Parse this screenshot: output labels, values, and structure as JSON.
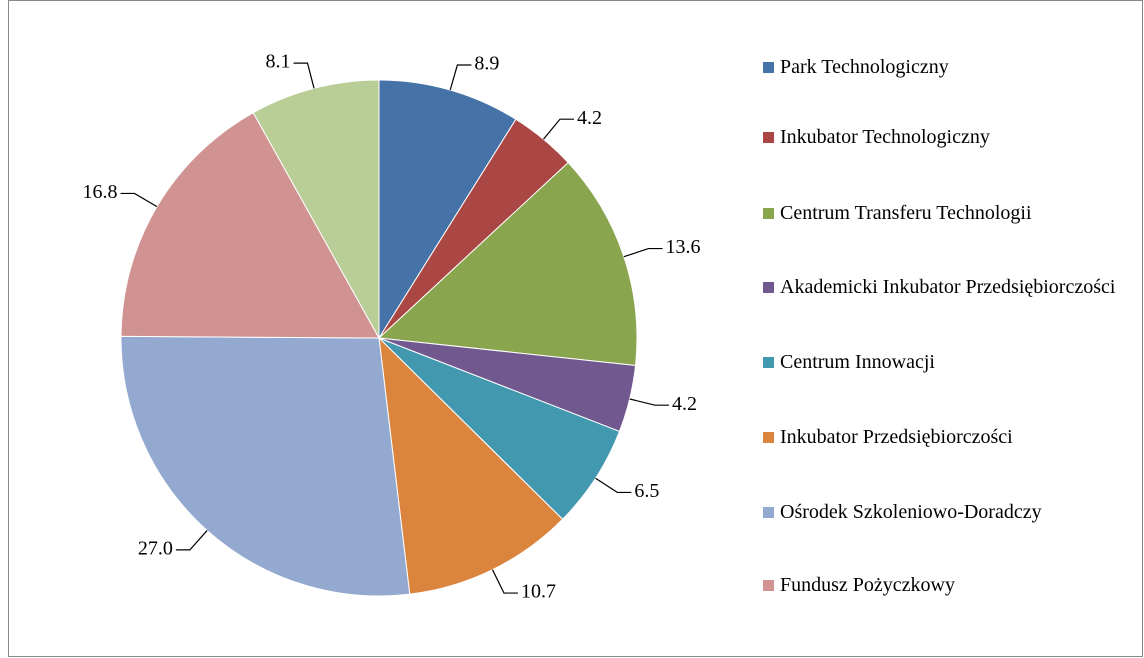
{
  "chart_data": {
    "type": "pie",
    "categories": [
      "Park Technologiczny",
      "Inkubator Technologiczny",
      "Centrum Transferu Technologii",
      "Akademicki Inkubator Przedsiębiorczości",
      "Centrum Innowacji",
      "Inkubator Przedsiębiorczości",
      "Ośrodek Szkoleniowo-Doradczy",
      "Fundusz Pożyczkowy",
      null
    ],
    "values": [
      8.9,
      4.2,
      13.6,
      4.2,
      6.5,
      10.7,
      27.0,
      16.8,
      8.1
    ],
    "value_labels": [
      "8.9",
      "4.2",
      "13.6",
      "4.2",
      "6.5",
      "10.7",
      "27.0",
      "16.8",
      "8.1"
    ],
    "colors": [
      "#4572a7",
      "#aa4643",
      "#89a54e",
      "#71588f",
      "#4198af",
      "#db843d",
      "#93a9cf",
      "#d19392",
      "#b9cd96"
    ]
  }
}
